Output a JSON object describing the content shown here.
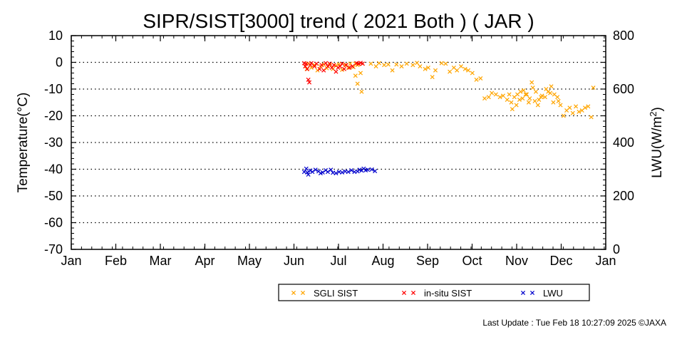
{
  "chart_data": {
    "type": "scatter",
    "title": "SIPR/SIST[3000] trend ( 2021 Both ) ( JAR )",
    "ylabel": "Temperature(°C)",
    "y2label": "LWU(W/m²)",
    "ylim": [
      -70,
      10
    ],
    "y2lim": [
      0,
      800
    ],
    "yticks": [
      "10",
      "0",
      "-10",
      "-20",
      "-30",
      "-40",
      "-50",
      "-60",
      "-70"
    ],
    "y2ticks": [
      "800",
      "600",
      "400",
      "200",
      "0"
    ],
    "xticks": [
      "Jan",
      "Feb",
      "Mar",
      "Apr",
      "May",
      "Jun",
      "Jul",
      "Aug",
      "Sep",
      "Oct",
      "Nov",
      "Dec",
      "Jan"
    ],
    "grid": "horizontal dotted",
    "legend_position": "bottom",
    "series": [
      {
        "name": "SGLI SIST",
        "color": "#ffa500",
        "axis": "left",
        "marker": "x",
        "points": [
          [
            1.1,
            -1.5
          ],
          [
            1.25,
            -2.5
          ],
          [
            1.4,
            -0.5
          ],
          [
            1.7,
            -2.0
          ],
          [
            2.0,
            -1.0
          ],
          [
            2.3,
            -3.0
          ],
          [
            2.6,
            -1.5
          ],
          [
            2.9,
            -0.8
          ],
          [
            3.2,
            -2.2
          ],
          [
            3.5,
            -1.0
          ],
          [
            3.8,
            -2.5
          ],
          [
            4.1,
            -1.2
          ],
          [
            4.4,
            -0.7
          ],
          [
            4.7,
            -2.8
          ],
          [
            5.0,
            -1.0
          ],
          [
            5.3,
            -2.0
          ],
          [
            5.5,
            -0.5
          ],
          [
            5.8,
            -1.8
          ],
          [
            6.0,
            -0.5
          ],
          [
            6.2,
            -1.0
          ],
          [
            6.3,
            -0.7
          ],
          [
            6.0,
            -5.0
          ],
          [
            6.2,
            -8.0
          ],
          [
            6.5,
            -4.0
          ],
          [
            6.6,
            -11.0
          ],
          [
            6.7,
            -0.5
          ],
          [
            7.5,
            -0.5
          ],
          [
            8.0,
            -1.5
          ],
          [
            8.3,
            -0.3
          ],
          [
            8.8,
            -1.0
          ],
          [
            9.2,
            -0.8
          ],
          [
            9.6,
            -3.0
          ],
          [
            10.0,
            -0.8
          ],
          [
            10.5,
            -1.5
          ],
          [
            11.0,
            -0.5
          ],
          [
            11.6,
            -1.0
          ],
          [
            12.0,
            -0.2
          ],
          [
            12.3,
            -1.5
          ],
          [
            12.8,
            -2.5
          ],
          [
            13.1,
            -2.0
          ],
          [
            13.5,
            -5.5
          ],
          [
            13.8,
            -3.0
          ],
          [
            14.4,
            -0.3
          ],
          [
            14.8,
            -0.5
          ],
          [
            15.2,
            -3.5
          ],
          [
            15.6,
            -2.0
          ],
          [
            15.9,
            -3.0
          ],
          [
            16.3,
            -1.5
          ],
          [
            16.7,
            -2.5
          ],
          [
            17.0,
            -3.0
          ],
          [
            17.4,
            -4.0
          ],
          [
            17.8,
            -6.5
          ],
          [
            18.2,
            -6.0
          ],
          [
            18.6,
            -13.5
          ],
          [
            19.0,
            -13.0
          ],
          [
            19.3,
            -11.5
          ],
          [
            19.7,
            -12.0
          ],
          [
            20.1,
            -13.0
          ],
          [
            20.4,
            -12.5
          ],
          [
            20.8,
            -14.0
          ],
          [
            21.2,
            -15.0
          ],
          [
            21.5,
            -13.0
          ],
          [
            21.8,
            -12.0
          ],
          [
            22.1,
            -11.0
          ],
          [
            22.4,
            -10.5
          ],
          [
            22.7,
            -12.0
          ],
          [
            23.0,
            -13.5
          ],
          [
            23.3,
            -9.5
          ],
          [
            23.6,
            -11.0
          ],
          [
            23.9,
            -14.0
          ],
          [
            24.2,
            -12.5
          ],
          [
            24.5,
            -13.0
          ],
          [
            24.8,
            -11.0
          ],
          [
            25.1,
            -9.0
          ],
          [
            25.4,
            -12.0
          ],
          [
            25.7,
            -13.0
          ],
          [
            26.0,
            -16.0
          ],
          [
            21.0,
            -12.0
          ],
          [
            21.3,
            -17.5
          ],
          [
            21.7,
            -16.0
          ],
          [
            22.0,
            -14.0
          ],
          [
            22.3,
            -13.5
          ],
          [
            22.6,
            -12.0
          ],
          [
            22.9,
            -15.0
          ],
          [
            23.2,
            -7.5
          ],
          [
            23.5,
            -14.5
          ],
          [
            23.8,
            -16.0
          ],
          [
            24.1,
            -13.0
          ],
          [
            24.6,
            -10.0
          ],
          [
            25.0,
            -11.5
          ],
          [
            25.3,
            -15.0
          ],
          [
            25.8,
            -14.5
          ],
          [
            26.3,
            -20.0
          ],
          [
            26.6,
            -18.0
          ],
          [
            26.9,
            -17.0
          ],
          [
            27.2,
            -19.0
          ],
          [
            27.5,
            -16.5
          ],
          [
            27.8,
            -18.5
          ],
          [
            28.1,
            -18.0
          ],
          [
            28.4,
            -17.0
          ],
          [
            28.7,
            -16.5
          ],
          [
            29.0,
            -20.5
          ],
          [
            29.2,
            -9.5
          ]
        ]
      },
      {
        "name": "in-situ SIST",
        "color": "#ff0000",
        "axis": "left",
        "marker": "x",
        "points": [
          [
            1.0,
            -0.3
          ],
          [
            1.1,
            -1.5
          ],
          [
            1.2,
            -0.5
          ],
          [
            1.3,
            -2.5
          ],
          [
            1.4,
            -6.5
          ],
          [
            1.5,
            -7.5
          ],
          [
            1.6,
            -1.0
          ],
          [
            1.7,
            -0.3
          ],
          [
            2.0,
            -1.5
          ],
          [
            2.2,
            -0.5
          ],
          [
            2.5,
            -2.5
          ],
          [
            2.7,
            -1.0
          ],
          [
            2.9,
            -3.0
          ],
          [
            3.1,
            -0.3
          ],
          [
            3.3,
            -1.5
          ],
          [
            3.5,
            -0.5
          ],
          [
            3.7,
            -2.0
          ],
          [
            3.9,
            -1.0
          ],
          [
            4.1,
            -3.5
          ],
          [
            4.3,
            -2.0
          ],
          [
            4.5,
            -1.5
          ],
          [
            4.7,
            -0.5
          ],
          [
            4.9,
            -2.5
          ],
          [
            5.1,
            -1.0
          ],
          [
            5.4,
            -2.0
          ],
          [
            5.7,
            -1.5
          ],
          [
            6.1,
            -0.3
          ],
          [
            6.3,
            -0.5
          ],
          [
            6.5,
            -0.2
          ],
          [
            6.7,
            -0.5
          ]
        ]
      },
      {
        "name": "LWU",
        "color": "#0000cc",
        "axis": "right",
        "marker": "x",
        "points": [
          [
            1.0,
            290
          ],
          [
            1.2,
            302
          ],
          [
            1.3,
            288
          ],
          [
            1.4,
            280
          ],
          [
            1.6,
            295
          ],
          [
            1.8,
            290
          ],
          [
            2.1,
            298
          ],
          [
            2.4,
            292
          ],
          [
            2.6,
            285
          ],
          [
            2.8,
            288
          ],
          [
            3.1,
            296
          ],
          [
            3.3,
            290
          ],
          [
            3.6,
            298
          ],
          [
            3.8,
            287
          ],
          [
            4.1,
            285
          ],
          [
            4.4,
            290
          ],
          [
            4.7,
            288
          ],
          [
            5.0,
            292
          ],
          [
            5.3,
            290
          ],
          [
            5.6,
            296
          ],
          [
            5.9,
            290
          ],
          [
            6.2,
            292
          ],
          [
            6.4,
            298
          ],
          [
            6.6,
            295
          ],
          [
            6.8,
            302
          ],
          [
            7.0,
            296
          ],
          [
            7.2,
            298
          ],
          [
            7.6,
            299
          ],
          [
            7.9,
            293
          ]
        ]
      }
    ],
    "x_unit_note": "x in weeks after 1 Jun"
  },
  "legend": {
    "items": [
      {
        "label": "SGLI SIST",
        "color": "#ffa500"
      },
      {
        "label": "in-situ SIST",
        "color": "#ff0000"
      },
      {
        "label": "LWU",
        "color": "#0000cc"
      }
    ]
  },
  "footer": {
    "last_update": "Last Update : Tue Feb 18 10:27:09 2025  ©JAXA"
  }
}
